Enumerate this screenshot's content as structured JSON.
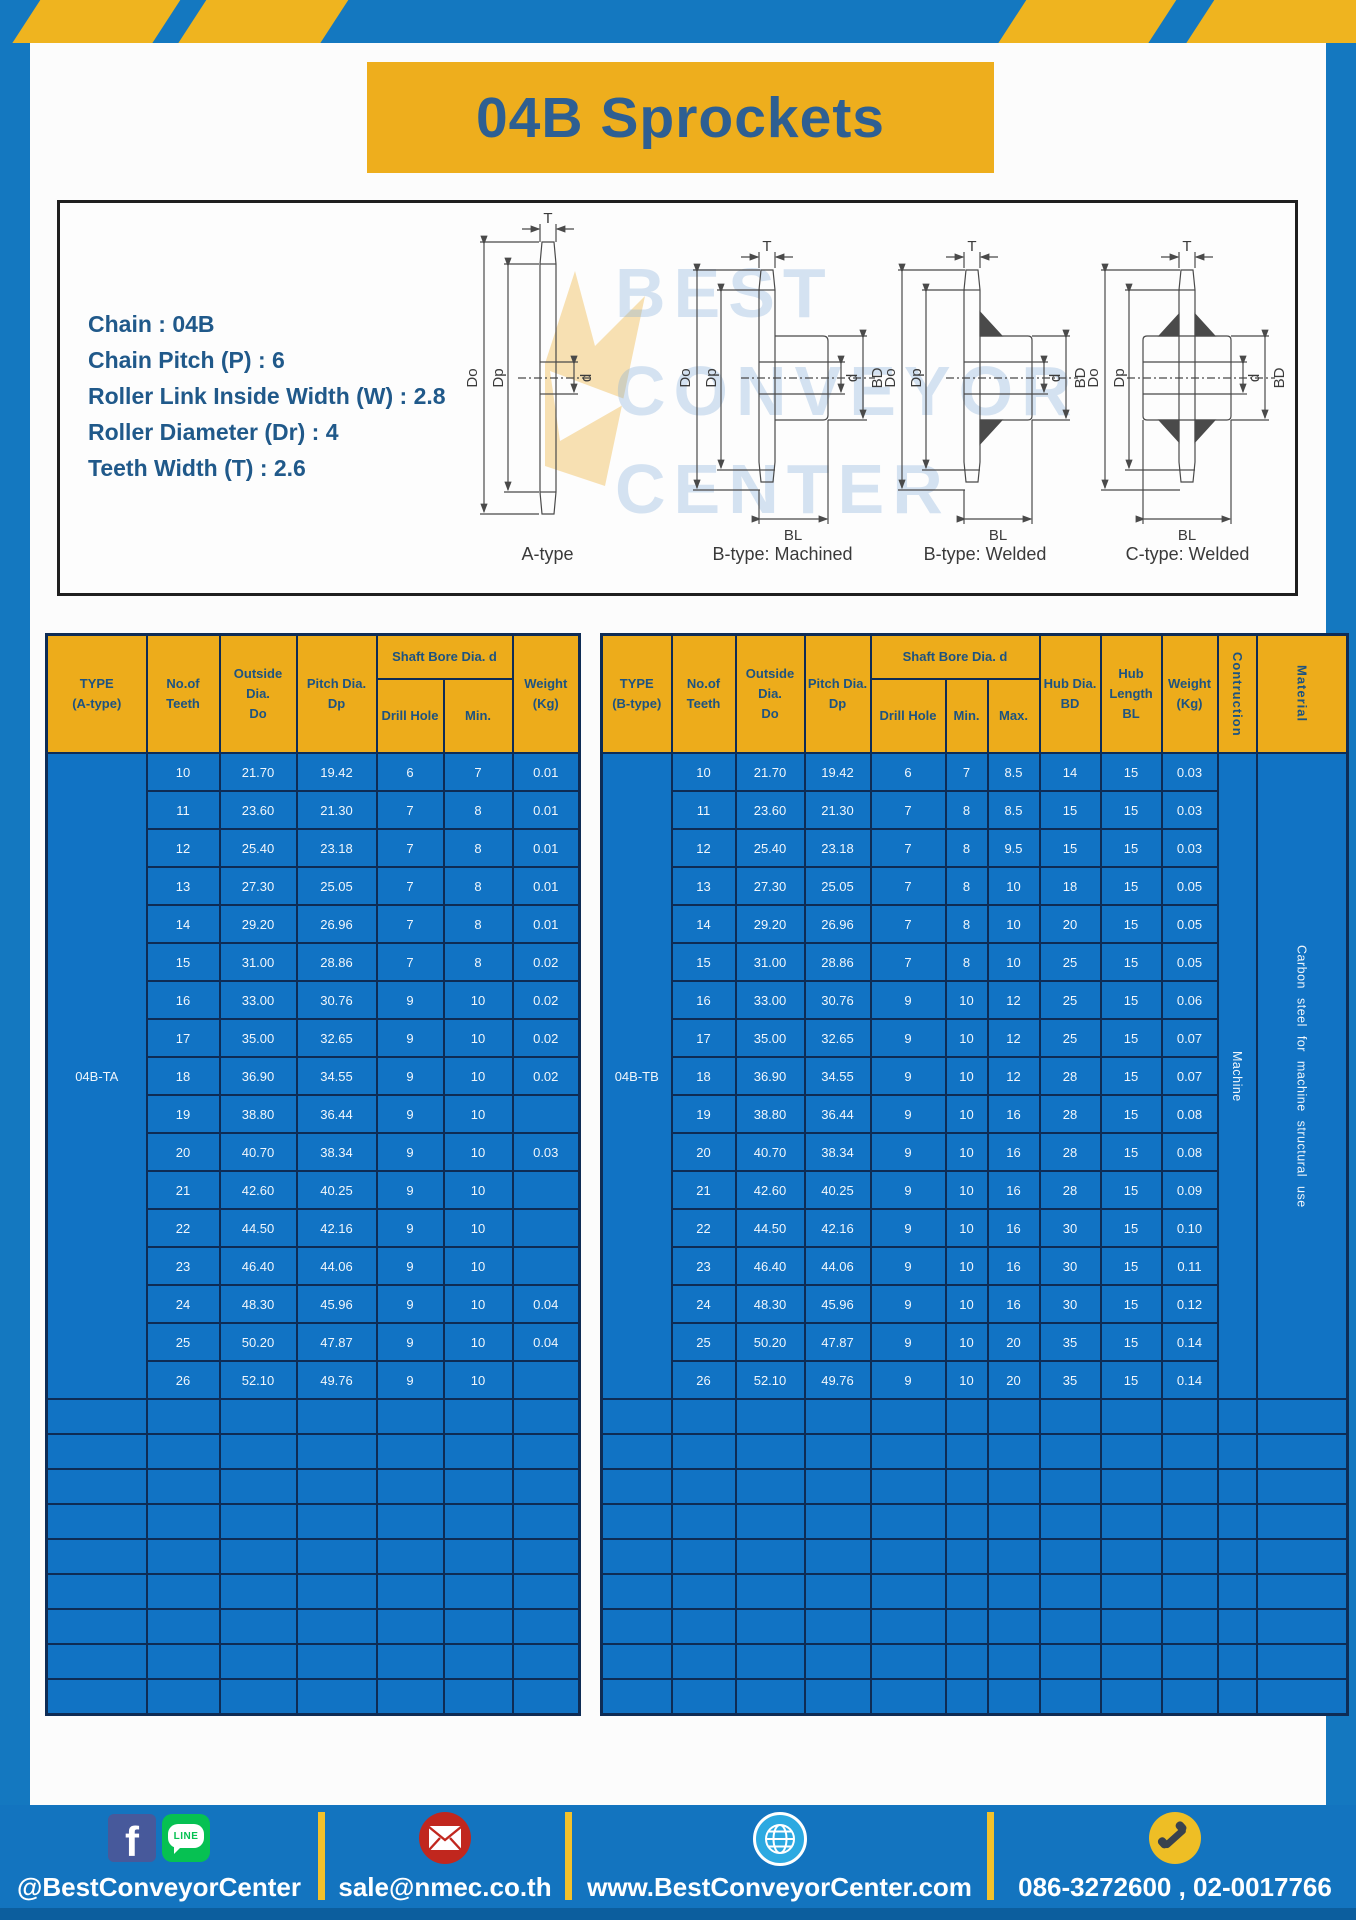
{
  "header": {
    "title": "04B Sprockets"
  },
  "colors": {
    "page_blue": "#1478c0",
    "table_cell_blue": "#1173c4",
    "table_border_navy": "#0e2c55",
    "header_yellow": "#edac1b",
    "title_text_blue": "#2e5f92",
    "footer_blue": "#1374bf",
    "separator_yellow": "#f2c12b"
  },
  "specs": [
    "Chain : 04B",
    "Chain Pitch (P) : 6",
    "Roller Link Inside Width (W) : 2.8",
    "Roller Diameter (Dr) : 4",
    "Teeth Width (T) : 2.6"
  ],
  "drawings": {
    "labels": [
      "A-type",
      "B-type: Machined",
      "B-type: Welded",
      "C-type: Welded"
    ],
    "dims": {
      "t": "T",
      "do": "Do",
      "dp": "Dp",
      "d": "d",
      "bd": "BD",
      "bl": "BL"
    },
    "watermark_lines": [
      "BEST",
      "CONVEYOR",
      "CENTER"
    ]
  },
  "table_a": {
    "headers": {
      "type": "TYPE\n(A-type)",
      "teeth": "No.of\nTeeth",
      "outside": "Outside\nDia.\nDo",
      "pitch": "Pitch Dia.\nDp",
      "shaft": "Shaft Bore Dia. d",
      "drill": "Drill Hole",
      "min": "Min.",
      "weight": "Weight\n(Kg)"
    },
    "type_value": "04B-TA",
    "rows": [
      [
        "10",
        "21.70",
        "19.42",
        "6",
        "7",
        "0.01"
      ],
      [
        "11",
        "23.60",
        "21.30",
        "7",
        "8",
        "0.01"
      ],
      [
        "12",
        "25.40",
        "23.18",
        "7",
        "8",
        "0.01"
      ],
      [
        "13",
        "27.30",
        "25.05",
        "7",
        "8",
        "0.01"
      ],
      [
        "14",
        "29.20",
        "26.96",
        "7",
        "8",
        "0.01"
      ],
      [
        "15",
        "31.00",
        "28.86",
        "7",
        "8",
        "0.02"
      ],
      [
        "16",
        "33.00",
        "30.76",
        "9",
        "10",
        "0.02"
      ],
      [
        "17",
        "35.00",
        "32.65",
        "9",
        "10",
        "0.02"
      ],
      [
        "18",
        "36.90",
        "34.55",
        "9",
        "10",
        "0.02"
      ],
      [
        "19",
        "38.80",
        "36.44",
        "9",
        "10",
        ""
      ],
      [
        "20",
        "40.70",
        "38.34",
        "9",
        "10",
        "0.03"
      ],
      [
        "21",
        "42.60",
        "40.25",
        "9",
        "10",
        ""
      ],
      [
        "22",
        "44.50",
        "42.16",
        "9",
        "10",
        ""
      ],
      [
        "23",
        "46.40",
        "44.06",
        "9",
        "10",
        ""
      ],
      [
        "24",
        "48.30",
        "45.96",
        "9",
        "10",
        "0.04"
      ],
      [
        "25",
        "50.20",
        "47.87",
        "9",
        "10",
        "0.04"
      ],
      [
        "26",
        "52.10",
        "49.76",
        "9",
        "10",
        ""
      ]
    ],
    "empty_rows": 9
  },
  "table_b": {
    "headers": {
      "type": "TYPE\n(B-type)",
      "teeth": "No.of\nTeeth",
      "outside": "Outside\nDia.\nDo",
      "pitch": "Pitch Dia.\nDp",
      "shaft": "Shaft Bore Dia. d",
      "drill": "Drill Hole",
      "min": "Min.",
      "max": "Max.",
      "hub_dia": "Hub Dia.\nBD",
      "hub_len": "Hub\nLength\nBL",
      "weight": "Weight\n(Kg)",
      "construction": "Contruction",
      "material": "Material"
    },
    "type_value": "04B-TB",
    "construction_value": "Machine",
    "material_value": "Carbon steel for machine structural use",
    "rows": [
      [
        "10",
        "21.70",
        "19.42",
        "6",
        "7",
        "8.5",
        "14",
        "15",
        "0.03"
      ],
      [
        "11",
        "23.60",
        "21.30",
        "7",
        "8",
        "8.5",
        "15",
        "15",
        "0.03"
      ],
      [
        "12",
        "25.40",
        "23.18",
        "7",
        "8",
        "9.5",
        "15",
        "15",
        "0.03"
      ],
      [
        "13",
        "27.30",
        "25.05",
        "7",
        "8",
        "10",
        "18",
        "15",
        "0.05"
      ],
      [
        "14",
        "29.20",
        "26.96",
        "7",
        "8",
        "10",
        "20",
        "15",
        "0.05"
      ],
      [
        "15",
        "31.00",
        "28.86",
        "7",
        "8",
        "10",
        "25",
        "15",
        "0.05"
      ],
      [
        "16",
        "33.00",
        "30.76",
        "9",
        "10",
        "12",
        "25",
        "15",
        "0.06"
      ],
      [
        "17",
        "35.00",
        "32.65",
        "9",
        "10",
        "12",
        "25",
        "15",
        "0.07"
      ],
      [
        "18",
        "36.90",
        "34.55",
        "9",
        "10",
        "12",
        "28",
        "15",
        "0.07"
      ],
      [
        "19",
        "38.80",
        "36.44",
        "9",
        "10",
        "16",
        "28",
        "15",
        "0.08"
      ],
      [
        "20",
        "40.70",
        "38.34",
        "9",
        "10",
        "16",
        "28",
        "15",
        "0.08"
      ],
      [
        "21",
        "42.60",
        "40.25",
        "9",
        "10",
        "16",
        "28",
        "15",
        "0.09"
      ],
      [
        "22",
        "44.50",
        "42.16",
        "9",
        "10",
        "16",
        "30",
        "15",
        "0.10"
      ],
      [
        "23",
        "46.40",
        "44.06",
        "9",
        "10",
        "16",
        "30",
        "15",
        "0.11"
      ],
      [
        "24",
        "48.30",
        "45.96",
        "9",
        "10",
        "16",
        "30",
        "15",
        "0.12"
      ],
      [
        "25",
        "50.20",
        "47.87",
        "9",
        "10",
        "20",
        "35",
        "15",
        "0.14"
      ],
      [
        "26",
        "52.10",
        "49.76",
        "9",
        "10",
        "20",
        "35",
        "15",
        "0.14"
      ]
    ],
    "empty_rows": 9
  },
  "footer": {
    "social": "@BestConveyorCenter",
    "line_text": "LINE",
    "fb_letter": "f",
    "email": "sale@nmec.co.th",
    "website": "www.BestConveyorCenter.com",
    "phone": "086-3272600 , 02-0017766",
    "icons": [
      "facebook-icon",
      "line-icon",
      "email-icon",
      "globe-icon",
      "phone-icon"
    ]
  }
}
